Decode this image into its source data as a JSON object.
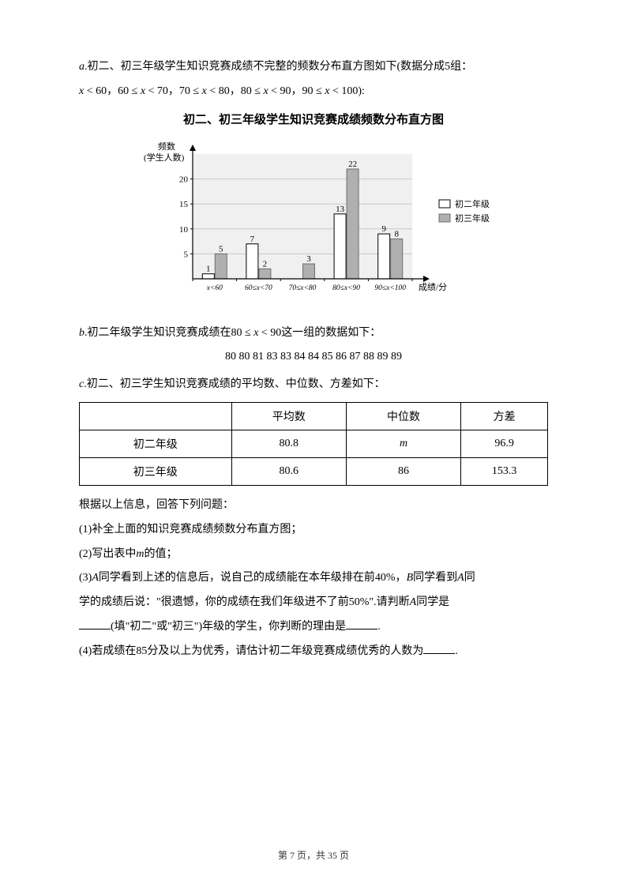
{
  "intro_a": "a.初二、初三年级学生知识竞赛成绩不完整的频数分布直方图如下(数据分成5组：",
  "ranges_line": "x < 60，60 ≤ x < 70，70 ≤ x < 80，80 ≤ x < 90，90 ≤ x < 100):",
  "chart_title": "初二、初三年级学生知识竞赛成绩频数分布直方图",
  "chart": {
    "y_label_1": "频数",
    "y_label_2": "(学生人数)",
    "x_label": "成绩/分",
    "y_ticks": [
      5,
      10,
      15,
      20
    ],
    "y_max": 25,
    "categories": [
      "x<60",
      "60≤x<70",
      "70≤x<80",
      "80≤x<90",
      "90≤x<100"
    ],
    "series": [
      {
        "name": "初二年级",
        "color": "#ffffff",
        "border": "#000000",
        "values": [
          1,
          7,
          null,
          13,
          9
        ]
      },
      {
        "name": "初三年级",
        "color": "#b0b0b0",
        "border": "#6d6d6d",
        "values": [
          5,
          2,
          3,
          22,
          8
        ]
      }
    ],
    "bar_labels": {
      "g0": [
        "1",
        "5"
      ],
      "g1": [
        "7",
        "2"
      ],
      "g2": [
        null,
        "3"
      ],
      "g3": [
        "13",
        "22"
      ],
      "g4": [
        "9",
        "8"
      ]
    },
    "legend": [
      "初二年级",
      "初三年级"
    ],
    "plot": {
      "bg": "#f0f0f0",
      "grid": "#c8c8c8",
      "axis": "#000000"
    }
  },
  "intro_b": "b.初二年级学生知识竞赛成绩在80 ≤ x < 90这一组的数据如下：",
  "b_data": "80 80 81 83 83 84 84 85 86 87 88 89 89",
  "intro_c": "c.初二、初三学生知识竞赛成绩的平均数、中位数、方差如下：",
  "table": {
    "headers": [
      "",
      "平均数",
      "中位数",
      "方差"
    ],
    "rows": [
      [
        "初二年级",
        "80.8",
        "m",
        "96.9"
      ],
      [
        "初三年级",
        "80.6",
        "86",
        "153.3"
      ]
    ]
  },
  "q_intro": "根据以上信息，回答下列问题：",
  "q1": "(1)补全上面的知识竞赛成绩频数分布直方图；",
  "q2": "(2)写出表中m的值；",
  "q3_p1": "(3)A同学看到上述的信息后，说自己的成绩能在本年级排在前40%，B同学看到A同",
  "q3_p2": "学的成绩后说：\"很遗憾，你的成绩在我们年级进不了前50%\".请判断A同学是",
  "q3_p3a": "(填\"初二\"或\"初三\")年级的学生，你判断的理由是",
  "q3_p3b": ".",
  "q4_a": "(4)若成绩在85分及以上为优秀，请估计初二年级竞赛成绩优秀的人数为",
  "q4_b": ".",
  "pagenum": "第 7 页，共 35 页"
}
